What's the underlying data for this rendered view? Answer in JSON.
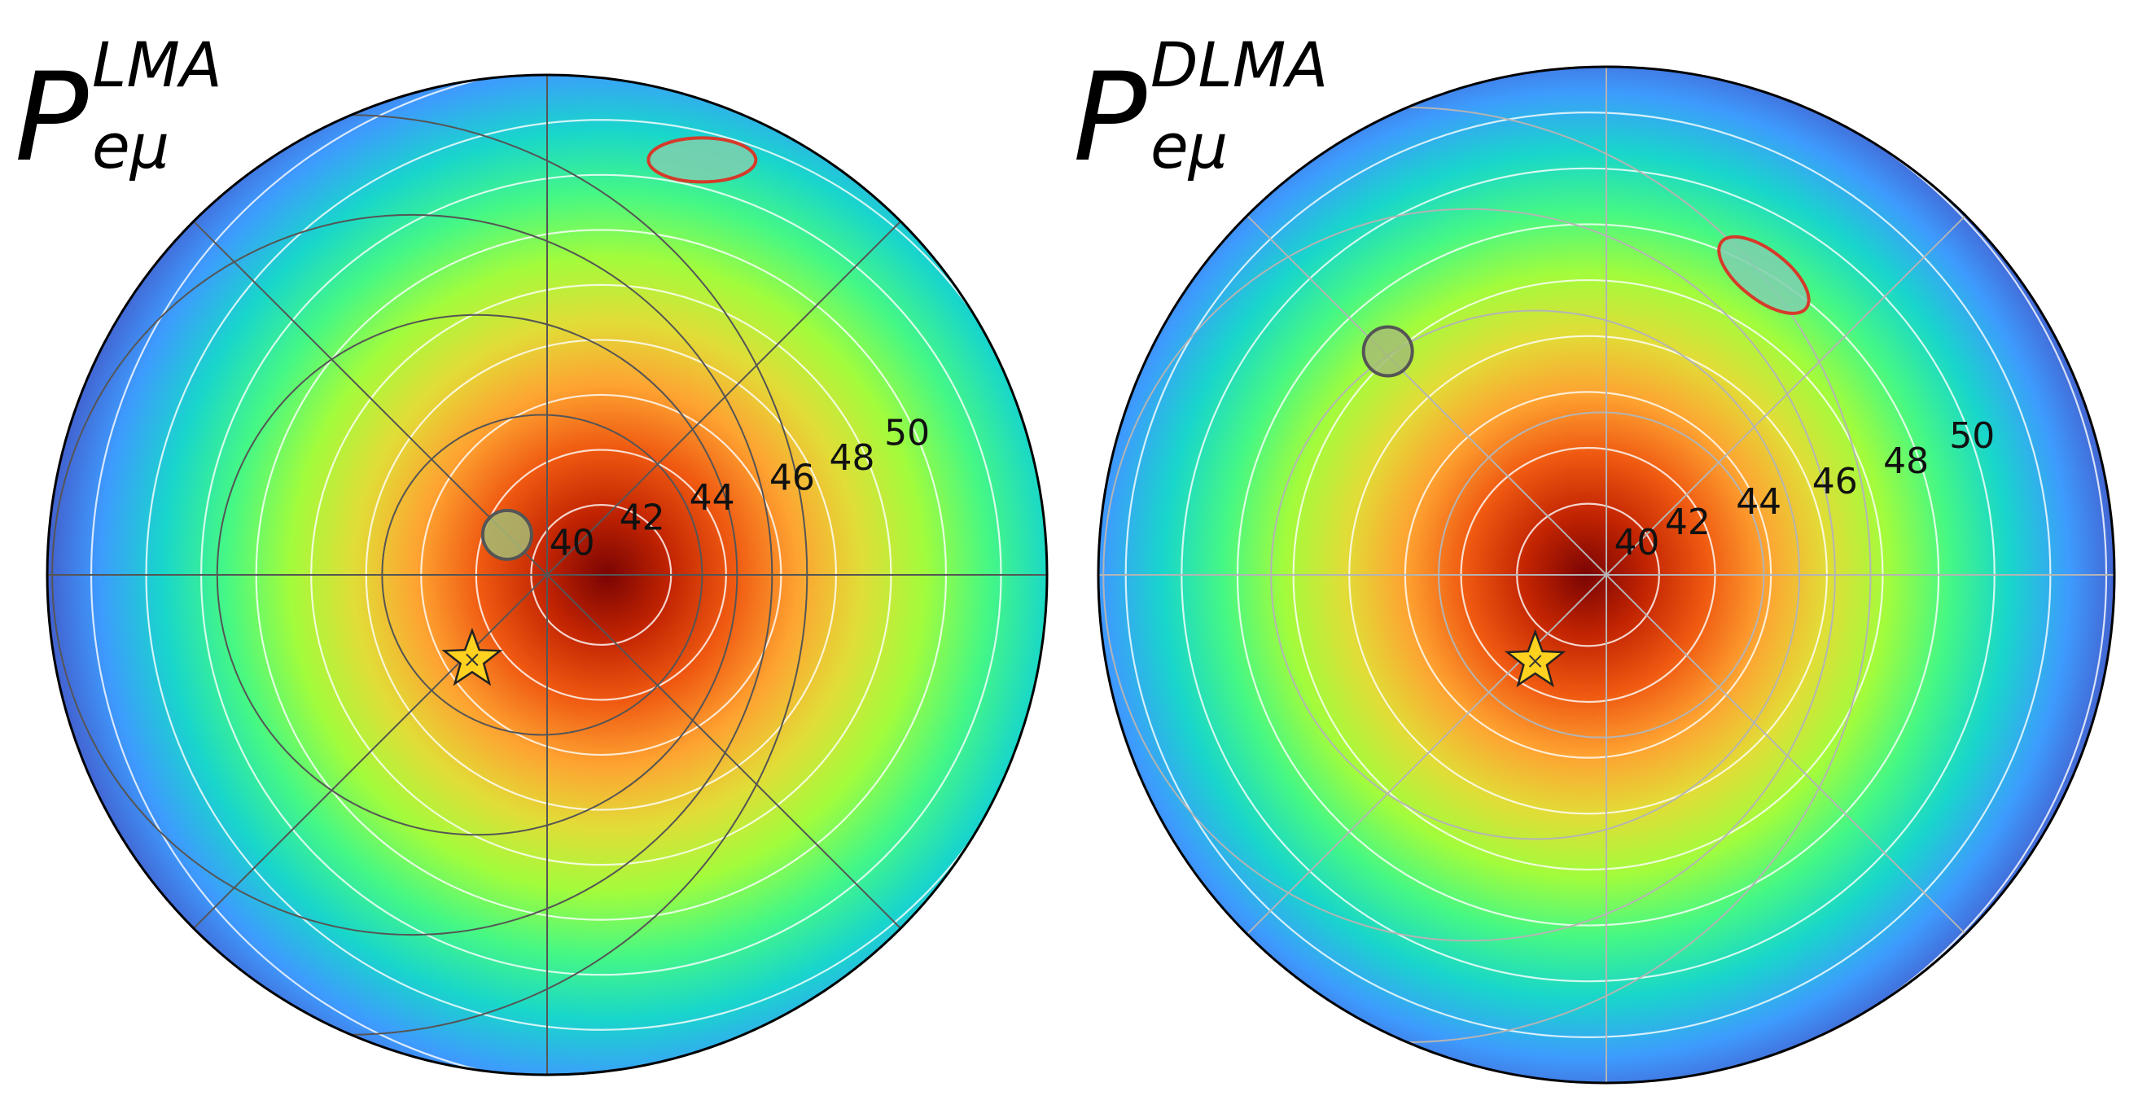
{
  "chart_data": [
    {
      "type": "heatmap",
      "projection": "orthographic-disk",
      "title": {
        "base": "P",
        "superscript": "LMA",
        "subscript": "eμ"
      },
      "colormap": "turbo",
      "grid": true,
      "contour_labels": [
        "40",
        "42",
        "44",
        "46",
        "48",
        "50"
      ],
      "hotspot": {
        "x": 0.12,
        "y": 0.0
      },
      "markers": [
        {
          "kind": "ellipse",
          "color": "#d63a2a",
          "x": 0.31,
          "y": 0.83
        },
        {
          "kind": "circle",
          "color": "#555555",
          "x": -0.08,
          "y": 0.08
        },
        {
          "kind": "star",
          "color": "#ffd21f",
          "x": -0.15,
          "y": -0.17
        }
      ]
    },
    {
      "type": "heatmap",
      "projection": "orthographic-disk",
      "title": {
        "base": "P",
        "superscript": "DLMA",
        "subscript": "eμ"
      },
      "colormap": "turbo",
      "grid": true,
      "contour_labels": [
        "40",
        "42",
        "44",
        "46",
        "48",
        "50"
      ],
      "hotspot": {
        "x": -0.04,
        "y": 0.0
      },
      "markers": [
        {
          "kind": "ellipse",
          "color": "#d63a2a",
          "x": 0.31,
          "y": 0.59
        },
        {
          "kind": "circle",
          "color": "#555555",
          "x": -0.43,
          "y": 0.44
        },
        {
          "kind": "star",
          "color": "#ffd21f",
          "x": -0.14,
          "y": -0.17
        }
      ]
    }
  ]
}
